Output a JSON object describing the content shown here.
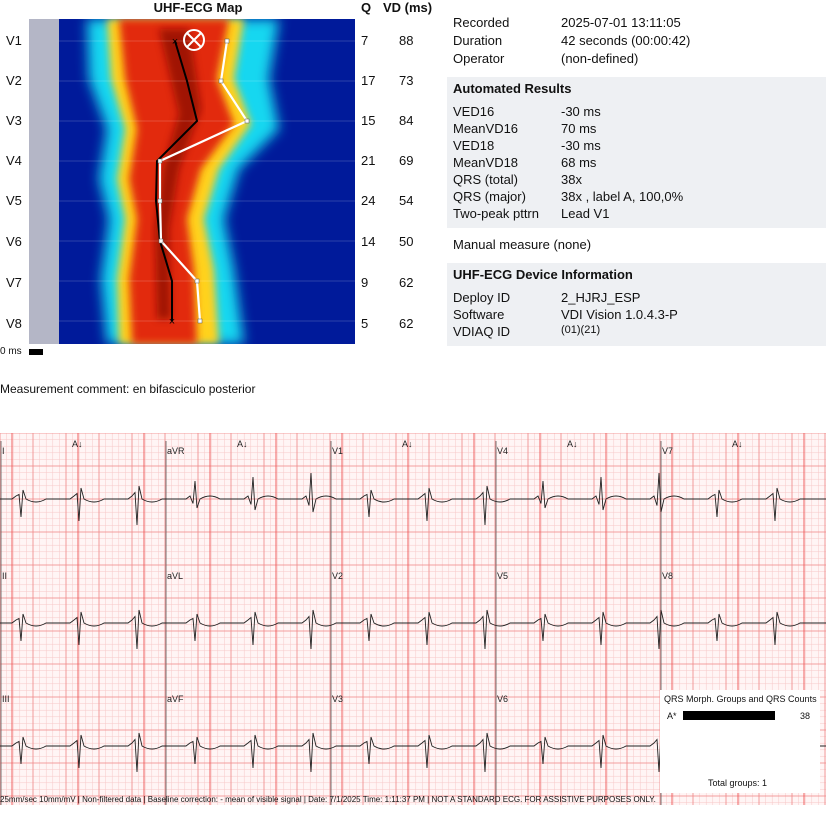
{
  "map": {
    "title": "UHF-ECG Map",
    "q_header": "Q",
    "vd_header": "VD (ms)",
    "scale_label": "0 ms",
    "leads": [
      {
        "name": "V1",
        "q": "7",
        "vd": "88"
      },
      {
        "name": "V2",
        "q": "17",
        "vd": "73"
      },
      {
        "name": "V3",
        "q": "15",
        "vd": "84"
      },
      {
        "name": "V4",
        "q": "21",
        "vd": "69"
      },
      {
        "name": "V5",
        "q": "24",
        "vd": "54"
      },
      {
        "name": "V6",
        "q": "14",
        "vd": "50"
      },
      {
        "name": "V7",
        "q": "9",
        "vd": "62"
      },
      {
        "name": "V8",
        "q": "5",
        "vd": "62"
      }
    ],
    "colors": {
      "background": "#001a9a",
      "low": "#19d7f0",
      "mid": "#ffd21e",
      "high": "#e22a10",
      "peak": "#8a0a00",
      "left_strip": "#b4b6c6"
    }
  },
  "recording": {
    "recorded_label": "Recorded",
    "recorded_value": "2025-07-01 13:11:05",
    "duration_label": "Duration",
    "duration_value": "42 seconds (00:00:42)",
    "operator_label": "Operator",
    "operator_value": "(non-defined)"
  },
  "automated": {
    "title": "Automated Results",
    "rows": [
      {
        "k": "VED16",
        "v": "-30 ms"
      },
      {
        "k": "MeanVD16",
        "v": "70 ms"
      },
      {
        "k": "VED18",
        "v": "-30 ms"
      },
      {
        "k": "MeanVD18",
        "v": "68 ms"
      },
      {
        "k": "QRS  (total)",
        "v": "38x"
      },
      {
        "k": "QRS  (major)",
        "v": "38x , label A, 100,0%"
      },
      {
        "k": "Two-peak  pttrn",
        "v": "Lead V1"
      }
    ]
  },
  "manual_measure": "Manual  measure (none)",
  "device": {
    "title": "UHF-ECG Device Information",
    "rows": [
      {
        "k": "Deploy ID",
        "v": "2_HJRJ_ESP"
      },
      {
        "k": "Software",
        "v": "VDI Vision 1.0.4.3-P"
      },
      {
        "k": "VDIAQ ID",
        "v": "(01)(21)"
      }
    ]
  },
  "comment": "Measurement comment: en bifasciculo posterior",
  "ecg": {
    "rows": [
      [
        "I",
        "aVR",
        "V1",
        "V4",
        "V7"
      ],
      [
        "II",
        "aVL",
        "V2",
        "V5",
        "V8"
      ],
      [
        "III",
        "aVF",
        "V3",
        "V6"
      ]
    ],
    "beat_marker": "A↓",
    "grid_major": "#f08a8a",
    "grid_minor": "#f7c8c8"
  },
  "qrs_groups": {
    "title": "QRS Morph. Groups and QRS Counts",
    "label": "A*",
    "count": "38",
    "total": "Total groups: 1"
  },
  "footer": "25mm/sec  10mm/mV | Non-filtered data | Baseline correction: - mean of visible signal | Date: 7/1/2025 Time: 1:11:37 PM | NOT A STANDARD ECG. FOR ASSISTIVE PURPOSES ONLY."
}
